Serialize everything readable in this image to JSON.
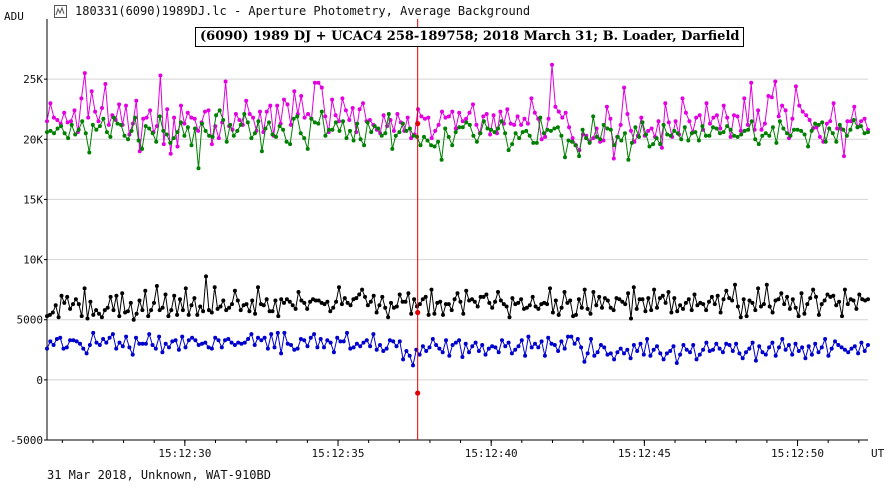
{
  "window": {
    "title": "180331(6090)1989DJ.lc - Aperture Photometry, Average Background",
    "icon": "lightcurve-app-icon"
  },
  "footer_text": "31 Mar 2018, Unknown, WAT-910BD",
  "chart_data": {
    "type": "line",
    "title": "(6090) 1989 DJ + UCAC4 258-189758;  2018 March 31;  B. Loader, Darfield",
    "ylabel": "ADU",
    "xlabel": "UT",
    "ylim": [
      -5000,
      30000
    ],
    "xlim": [
      "15:12:25.5",
      "15:12:52.3"
    ],
    "x_ticks": [
      "15:12:30",
      "15:12:35",
      "15:12:40",
      "15:12:45",
      "15:12:50"
    ],
    "y_ticks": [
      {
        "value": 25000,
        "label": "25K"
      },
      {
        "value": 20000,
        "label": "20K"
      },
      {
        "value": 15000,
        "label": "15K"
      },
      {
        "value": 10000,
        "label": "10K"
      },
      {
        "value": 5000,
        "label": "5000"
      },
      {
        "value": 0,
        "label": "0"
      },
      {
        "value": -5000,
        "label": "-5000"
      }
    ],
    "grid": "horizontal",
    "marker_line": {
      "time": "15:12:37.6",
      "color": "#e00000"
    },
    "sample_interval_s": 0.08,
    "series": [
      {
        "color": "#e000e0",
        "values": [
          21500,
          23000,
          21800,
          21600,
          21300,
          22200,
          21400,
          21500,
          22400,
          20600,
          23400,
          25500,
          21800,
          24000,
          22300,
          21500,
          22600,
          24600,
          21200,
          22000,
          21600,
          22900,
          21200,
          22800,
          20400,
          21300,
          23200,
          19000,
          21700,
          21800,
          22400,
          20600,
          21100,
          25300,
          19600,
          22500,
          18800,
          21800,
          19400,
          22800,
          21300,
          22200,
          21800,
          21700,
          20700,
          21400,
          22300,
          22400,
          19600,
          21100,
          20100,
          21400,
          24800,
          21100,
          20800,
          22100,
          21600,
          21200,
          23200,
          22100,
          21800,
          20700,
          22300,
          20600,
          22300,
          22800,
          20300,
          22800,
          21300,
          23300,
          22900,
          21200,
          24000,
          22100,
          23600,
          21800,
          22100,
          21700,
          24700,
          24700,
          24300,
          21900,
          20600,
          23300,
          22000,
          21500,
          23400,
          22400,
          21600,
          22600,
          20600,
          22500,
          23000,
          21500,
          21600,
          21200,
          20800,
          20500,
          22000,
          21100,
          21600,
          20700,
          22100,
          21400,
          20700,
          21800,
          20100,
          20400,
          22500,
          21900,
          21700,
          21800,
          20100,
          20700,
          21200,
          22300,
          21800,
          21900,
          22300,
          20900,
          22200,
          21500,
          21700,
          22200,
          22900,
          21200,
          20500,
          21900,
          22100,
          20400,
          22000,
          20500,
          22300,
          21300,
          22500,
          21300,
          21200,
          21900,
          21200,
          21700,
          21300,
          23400,
          22200,
          21700,
          20000,
          20200,
          21700,
          26200,
          22700,
          22300,
          21800,
          22200,
          21000,
          20100,
          19500,
          19100,
          20400,
          20300,
          19800,
          20100,
          20900,
          19800,
          19900,
          22700,
          21700,
          18400,
          20200,
          21200,
          24300,
          22100,
          20700,
          19800,
          20300,
          21800,
          20300,
          20700,
          20900,
          20200,
          21500,
          19300,
          23000,
          21400,
          20200,
          21500,
          20400,
          23400,
          22200,
          21500,
          20600,
          21800,
          22000,
          20800,
          23000,
          21300,
          21800,
          22000,
          20900,
          22800,
          21800,
          20200,
          22000,
          21900,
          20700,
          23400,
          21200,
          24700,
          20800,
          22400,
          20800,
          21300,
          23600,
          23500,
          24800,
          21900,
          22800,
          22400,
          20100,
          21700,
          24400,
          22800,
          22300,
          22000,
          21600,
          20900,
          21000,
          20200,
          19800,
          21300,
          21500,
          23000,
          20900,
          20900,
          18600,
          21500,
          21500,
          22700,
          21000,
          21500,
          21700,
          20800
        ]
      },
      {
        "color": "#008000",
        "values": [
          20600,
          20700,
          20500,
          20900,
          21100,
          20500,
          20100,
          21200,
          20400,
          20800,
          21500,
          20500,
          18900,
          21200,
          20800,
          21100,
          21700,
          20600,
          20200,
          21800,
          21300,
          21200,
          20300,
          20000,
          20700,
          21800,
          19900,
          19200,
          21100,
          20900,
          20500,
          19800,
          21900,
          20700,
          20400,
          19700,
          20100,
          20600,
          21400,
          20300,
          21000,
          19500,
          20900,
          17600,
          21300,
          20700,
          20300,
          20200,
          22000,
          22400,
          21600,
          19800,
          21200,
          20300,
          20700,
          21200,
          22100,
          21400,
          20100,
          20500,
          21500,
          19000,
          20900,
          21400,
          20400,
          20200,
          21100,
          20800,
          19800,
          19600,
          21700,
          21900,
          20500,
          20100,
          19200,
          21700,
          21400,
          21300,
          22300,
          20300,
          20800,
          20800,
          21400,
          20700,
          21500,
          20100,
          20700,
          19900,
          21300,
          20000,
          19500,
          21400,
          20600,
          21100,
          20900,
          20300,
          20500,
          22100,
          19200,
          20300,
          20600,
          21300,
          20700,
          20900,
          20300,
          20200,
          19500,
          20200,
          19900,
          19500,
          19400,
          19800,
          18300,
          20900,
          20200,
          19500,
          20600,
          21000,
          21000,
          21400,
          21200,
          20300,
          19800,
          20500,
          21500,
          20900,
          20800,
          20600,
          20900,
          21500,
          20500,
          19100,
          19600,
          20500,
          20100,
          20600,
          20700,
          20300,
          19700,
          19700,
          21800,
          20500,
          20800,
          20700,
          20900,
          21000,
          20300,
          18500,
          19900,
          19800,
          19500,
          18600,
          20800,
          20100,
          19700,
          21900,
          20200,
          20000,
          21200,
          20900,
          20800,
          19500,
          20200,
          19900,
          20500,
          18300,
          19700,
          21000,
          20200,
          21400,
          20400,
          19400,
          19600,
          20100,
          19600,
          21200,
          20400,
          20300,
          20700,
          20500,
          20000,
          21000,
          19900,
          20500,
          20600,
          19900,
          21100,
          20300,
          20300,
          21000,
          20900,
          20500,
          20600,
          21100,
          20800,
          20300,
          20200,
          20400,
          20700,
          20800,
          21500,
          20000,
          19600,
          20300,
          20500,
          20300,
          21000,
          19700,
          21500,
          20900,
          20500,
          20300,
          20800,
          20800,
          20700,
          20400,
          19400,
          20700,
          21300,
          21200,
          21400,
          19800,
          20900,
          20500,
          19800,
          21200,
          20800,
          20300,
          20800,
          21600,
          21000,
          21100,
          20500,
          20600
        ]
      },
      {
        "color": "#000000",
        "values": [
          5300,
          5400,
          5600,
          6200,
          5200,
          7000,
          6400,
          6900,
          5900,
          6300,
          6700,
          6300,
          5300,
          7600,
          5100,
          6500,
          5400,
          5800,
          5500,
          5200,
          5800,
          6000,
          6900,
          5800,
          7000,
          5300,
          7200,
          5600,
          5700,
          6400,
          5000,
          5500,
          6600,
          5800,
          7400,
          5300,
          5800,
          6400,
          7800,
          5800,
          6000,
          7100,
          5300,
          5800,
          7000,
          5400,
          6700,
          5800,
          7600,
          5400,
          6200,
          6800,
          5400,
          6100,
          5700,
          8600,
          5800,
          5600,
          7700,
          5900,
          6100,
          6600,
          5800,
          6000,
          6300,
          7400,
          6600,
          5800,
          6200,
          6300,
          5700,
          6600,
          5500,
          7700,
          6300,
          6200,
          6700,
          5700,
          5700,
          6600,
          5300,
          6700,
          6400,
          6700,
          6500,
          6200,
          5900,
          7300,
          6600,
          6400,
          5900,
          6500,
          6700,
          6600,
          6600,
          6400,
          6300,
          6500,
          5700,
          6000,
          6500,
          7700,
          6300,
          6800,
          6400,
          6200,
          6700,
          6800,
          7100,
          7500,
          6900,
          6200,
          6500,
          7000,
          5600,
          6200,
          6900,
          6000,
          5200,
          6400,
          6000,
          6100,
          7100,
          6500,
          6500,
          7200,
          5500,
          6700,
          6100,
          6300,
          6700,
          6900,
          5400,
          7500,
          5500,
          6400,
          6500,
          5400,
          6300,
          6300,
          5800,
          6700,
          7200,
          6500,
          5500,
          7400,
          6600,
          6700,
          6500,
          6100,
          6900,
          6900,
          7100,
          6400,
          6000,
          6500,
          7300,
          6600,
          6300,
          6100,
          5200,
          6800,
          6300,
          6400,
          6700,
          5900,
          6000,
          6200,
          6900,
          6100,
          5900,
          6300,
          6400,
          6300,
          7600,
          5600,
          6600,
          5400,
          6000,
          7300,
          6400,
          6600,
          5300,
          5400,
          6700,
          6000,
          7500,
          5900,
          5500,
          7300,
          6200,
          6900,
          6000,
          6800,
          6600,
          6000,
          5800,
          6800,
          6700,
          6500,
          6300,
          7200,
          5100,
          7700,
          5900,
          6700,
          6700,
          5700,
          6800,
          5800,
          7500,
          6000,
          6800,
          7000,
          6400,
          7300,
          5600,
          6800,
          5700,
          6200,
          5900,
          6400,
          6700,
          5800,
          7100,
          6200,
          6400,
          6300,
          5800,
          6500,
          6900,
          6300,
          7000,
          5600,
          6700,
          7400,
          6800,
          6600,
          7900,
          6100,
          5200,
          6700,
          5300,
          6600,
          6400,
          5800,
          7600,
          6100,
          6300,
          7900,
          6100,
          5600,
          6600,
          6700,
          7200,
          6300,
          6900,
          5900,
          6700,
          6000,
          5300,
          7200,
          5500,
          6300,
          6800,
          7500,
          6900,
          5400,
          6300,
          6600,
          7100,
          6900,
          7000,
          6200,
          6500,
          5300,
          7500,
          6300,
          6700,
          6600,
          5900,
          7100,
          6700,
          6600,
          6700
        ]
      },
      {
        "color": "#0000cc",
        "values": [
          2600,
          3200,
          2900,
          3400,
          3500,
          2600,
          2700,
          3300,
          3300,
          3200,
          3000,
          2600,
          2200,
          2900,
          3900,
          3100,
          2900,
          3400,
          3100,
          3500,
          3800,
          2600,
          3100,
          2800,
          3600,
          2700,
          2100,
          3500,
          3000,
          3000,
          3000,
          3800,
          2900,
          2600,
          3600,
          2300,
          3000,
          2700,
          3200,
          3300,
          2500,
          3600,
          2700,
          3300,
          3500,
          3300,
          2900,
          3000,
          3100,
          2700,
          2600,
          3500,
          3300,
          2700,
          3300,
          3400,
          3100,
          2900,
          3100,
          3000,
          3100,
          3400,
          3800,
          2900,
          3500,
          3300,
          3500,
          2600,
          3800,
          2700,
          3900,
          2200,
          3900,
          3000,
          2900,
          2500,
          2600,
          3400,
          3300,
          2800,
          3500,
          3800,
          2700,
          3400,
          2700,
          3300,
          3100,
          2300,
          3500,
          3200,
          3200,
          3900,
          2600,
          2700,
          3000,
          2800,
          3100,
          3300,
          2800,
          3800,
          2500,
          2900,
          2400,
          2600,
          3300,
          3200,
          2800,
          3200,
          1700,
          2400,
          2000,
          1200,
          2500,
          2100,
          2800,
          2400,
          2700,
          3400,
          2900,
          2600,
          2300,
          3300,
          2000,
          2900,
          3100,
          3300,
          1900,
          3000,
          2300,
          2800,
          3100,
          2400,
          2900,
          2100,
          2600,
          2800,
          2700,
          2300,
          3300,
          2800,
          3100,
          2200,
          2500,
          2800,
          3300,
          2000,
          3600,
          2700,
          3000,
          2700,
          3200,
          2000,
          3500,
          3000,
          2900,
          2400,
          3200,
          2600,
          3600,
          3600,
          3000,
          3400,
          2700,
          1500,
          2200,
          3400,
          2000,
          2300,
          2900,
          2700,
          2100,
          2200,
          1700,
          2300,
          2600,
          2200,
          2500,
          1800,
          2900,
          2400,
          3000,
          2100,
          3400,
          2000,
          2500,
          2800,
          2200,
          1700,
          2200,
          2400,
          2800,
          1400,
          2100,
          2900,
          2500,
          2300,
          2900,
          1700,
          2100,
          2500,
          3100,
          2400,
          2500,
          3000,
          2600,
          2300,
          3000,
          2900,
          2400,
          3000,
          2200,
          1800,
          2300,
          2600,
          3100,
          1600,
          2800,
          2300,
          2100,
          2700,
          3100,
          2000,
          2700,
          3400,
          2500,
          2900,
          2100,
          3000,
          2400,
          2700,
          1800,
          2800,
          2100,
          3000,
          2300,
          2700,
          3400,
          2000,
          2600,
          3200,
          2900,
          2700,
          2500,
          2300,
          2600,
          2800,
          2200,
          3100,
          2400,
          2900
        ]
      }
    ],
    "highlight_points": [
      {
        "series_index": 0,
        "time": "15:12:37.6",
        "value": 21300,
        "color": "#e00000"
      },
      {
        "series_index": 2,
        "time": "15:12:37.6",
        "value": 5600,
        "color": "#e00000"
      },
      {
        "series_index": 3,
        "time": "15:12:37.6",
        "value": -1100,
        "color": "#e00000"
      }
    ]
  }
}
